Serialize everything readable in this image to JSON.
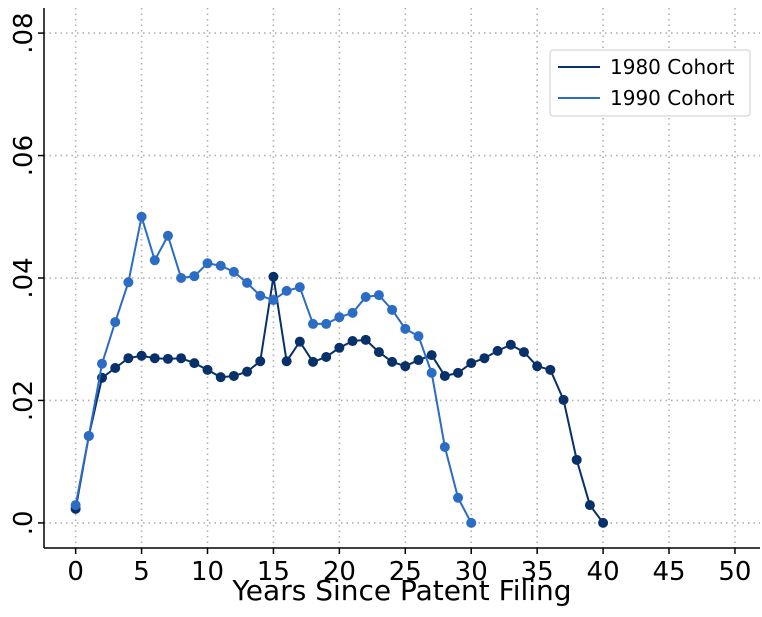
{
  "chart_data": {
    "type": "line",
    "xlabel": "Years Since Patent Filing",
    "xlim": [
      -2.4,
      51.9
    ],
    "ylim": [
      -0.0041,
      0.0841
    ],
    "xticks": [
      0,
      5,
      10,
      15,
      20,
      25,
      30,
      35,
      40,
      45,
      50
    ],
    "yticks": [
      {
        "value": 0,
        "label": ".0"
      },
      {
        "value": 0.02,
        "label": ".02"
      },
      {
        "value": 0.04,
        "label": ".04"
      },
      {
        "value": 0.06,
        "label": ".06"
      },
      {
        "value": 0.08,
        "label": ".08"
      }
    ],
    "grid": true,
    "legend": "upper right",
    "series": [
      {
        "name": "1980 Cohort",
        "color": "#08306b",
        "x": [
          0,
          1,
          2,
          3,
          4,
          5,
          6,
          7,
          8,
          9,
          10,
          11,
          12,
          13,
          14,
          15,
          16,
          17,
          18,
          19,
          20,
          21,
          22,
          23,
          24,
          25,
          26,
          27,
          28,
          29,
          30,
          31,
          32,
          33,
          34,
          35,
          36,
          37,
          38,
          39,
          40
        ],
        "values": [
          0.0023,
          0.0142,
          0.0237,
          0.0253,
          0.0269,
          0.0273,
          0.0269,
          0.0268,
          0.0269,
          0.0261,
          0.025,
          0.0238,
          0.024,
          0.0247,
          0.0264,
          0.0402,
          0.0264,
          0.0296,
          0.0263,
          0.0271,
          0.0286,
          0.0297,
          0.0299,
          0.0279,
          0.0263,
          0.0256,
          0.0266,
          0.0274,
          0.024,
          0.0245,
          0.0261,
          0.0269,
          0.0281,
          0.0291,
          0.0279,
          0.0256,
          0.025,
          0.0201,
          0.0103,
          0.0029,
          0
        ]
      },
      {
        "name": "1990 Cohort",
        "color": "#2b6cc4",
        "x": [
          0,
          1,
          2,
          3,
          4,
          5,
          6,
          7,
          8,
          9,
          10,
          11,
          12,
          13,
          14,
          15,
          16,
          17,
          18,
          19,
          20,
          21,
          22,
          23,
          24,
          25,
          26,
          27,
          28,
          29,
          30
        ],
        "values": [
          0.0029,
          0.0142,
          0.026,
          0.0328,
          0.0393,
          0.05,
          0.0429,
          0.0469,
          0.04,
          0.0403,
          0.0424,
          0.042,
          0.041,
          0.0392,
          0.0371,
          0.0364,
          0.0379,
          0.0385,
          0.0325,
          0.0325,
          0.0336,
          0.0343,
          0.0369,
          0.0372,
          0.0348,
          0.0317,
          0.0305,
          0.0245,
          0.0124,
          0.0041,
          0
        ]
      }
    ]
  }
}
